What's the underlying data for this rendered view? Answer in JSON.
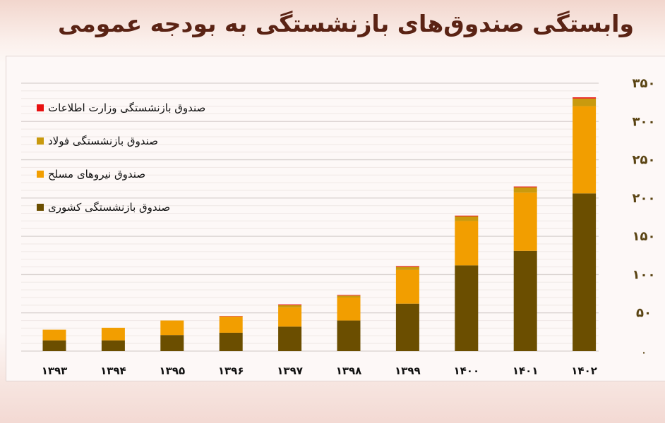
{
  "chart_data": {
    "type": "bar",
    "stacked": true,
    "title": "وابستگی صندوق‌های بازنشستگی به بودجه عمومی",
    "categories": [
      "۱۳۹۳",
      "۱۳۹۴",
      "۱۳۹۵",
      "۱۳۹۶",
      "۱۳۹۷",
      "۱۳۹۸",
      "۱۳۹۹",
      "۱۴۰۰",
      "۱۴۰۱",
      "۱۴۰۲"
    ],
    "series": [
      {
        "name": "صندوق بازنشستگی کشوری",
        "color": "#6b4e00",
        "values": [
          14,
          14,
          21,
          24,
          32,
          40,
          62,
          112,
          131,
          206
        ]
      },
      {
        "name": "صندوق نیروهای مسلح",
        "color": "#f29e00",
        "values": [
          14,
          16.5,
          19,
          21,
          25,
          30,
          44,
          58,
          76,
          114
        ]
      },
      {
        "name": "صندوق بازنشستگی فولاد",
        "color": "#c99a0e",
        "values": [
          0,
          0,
          0,
          0.5,
          3,
          2.5,
          4,
          6,
          7,
          10
        ]
      },
      {
        "name": "صندوق بازنشستگی وزارت اطلاعات",
        "color": "#e81010",
        "values": [
          0,
          0,
          0,
          0.3,
          1,
          0.8,
          1,
          1,
          1,
          1.5
        ]
      }
    ],
    "yticks": [
      "۰",
      "۵۰",
      "۱۰۰",
      "۱۵۰",
      "۲۰۰",
      "۲۵۰",
      "۳۰۰",
      "۳۵۰"
    ],
    "ylim": [
      0,
      350
    ],
    "yaxis_position": "right",
    "grid": true,
    "legend_position": "top-left",
    "legend_order": [
      3,
      2,
      1,
      0
    ]
  }
}
